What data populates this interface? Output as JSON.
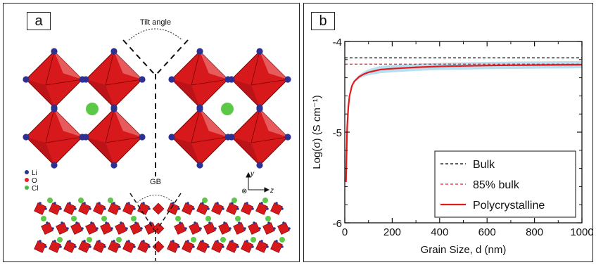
{
  "panel_a": {
    "letter": "a",
    "tilt_label": "Tilt angle",
    "gb_label": "GB",
    "legend": [
      {
        "symbol": "Li",
        "color": "#2e3192"
      },
      {
        "symbol": "O",
        "color": "#ed1c24"
      },
      {
        "symbol": "Cl",
        "color": "#4cb848"
      }
    ],
    "axes": {
      "y": "y",
      "z": "z",
      "x_symbol": "⊗"
    },
    "colors": {
      "octahedron": "#d7191c",
      "octahedron_light": "#f08080",
      "li": "#2e3192",
      "cl": "#5cc848"
    }
  },
  "panel_b": {
    "letter": "b",
    "chart_data": {
      "type": "line",
      "xlabel": "Grain Size, d (nm)",
      "ylabel": "Log(σ) (S cm⁻¹)",
      "xlim": [
        0,
        1000
      ],
      "ylim": [
        -6,
        -4
      ],
      "xticks": [
        "0",
        "200",
        "400",
        "600",
        "800",
        "1000"
      ],
      "yticks": [
        "-4",
        "-5",
        "-6"
      ],
      "legend_position": "bottom-right",
      "series": [
        {
          "name": "Bulk",
          "style": "dashed",
          "color": "#000000",
          "x": [
            0,
            1000
          ],
          "y": [
            -4.18,
            -4.18
          ]
        },
        {
          "name": "85% bulk",
          "style": "dashed",
          "color": "#ed1c24",
          "x": [
            0,
            1000
          ],
          "y": [
            -4.25,
            -4.25
          ]
        },
        {
          "name": "Polycrystalline",
          "style": "solid",
          "color": "#e31a1c",
          "x": [
            5,
            10,
            15,
            20,
            30,
            40,
            60,
            80,
            100,
            150,
            200,
            300,
            400,
            500,
            600,
            700,
            800,
            900,
            1000
          ],
          "y": [
            -5.55,
            -4.95,
            -4.72,
            -4.6,
            -4.49,
            -4.44,
            -4.39,
            -4.36,
            -4.34,
            -4.31,
            -4.3,
            -4.285,
            -4.275,
            -4.27,
            -4.265,
            -4.262,
            -4.26,
            -4.258,
            -4.256
          ],
          "band_color": "#b8dff0",
          "band_halfwidth": 0.04
        }
      ]
    }
  }
}
